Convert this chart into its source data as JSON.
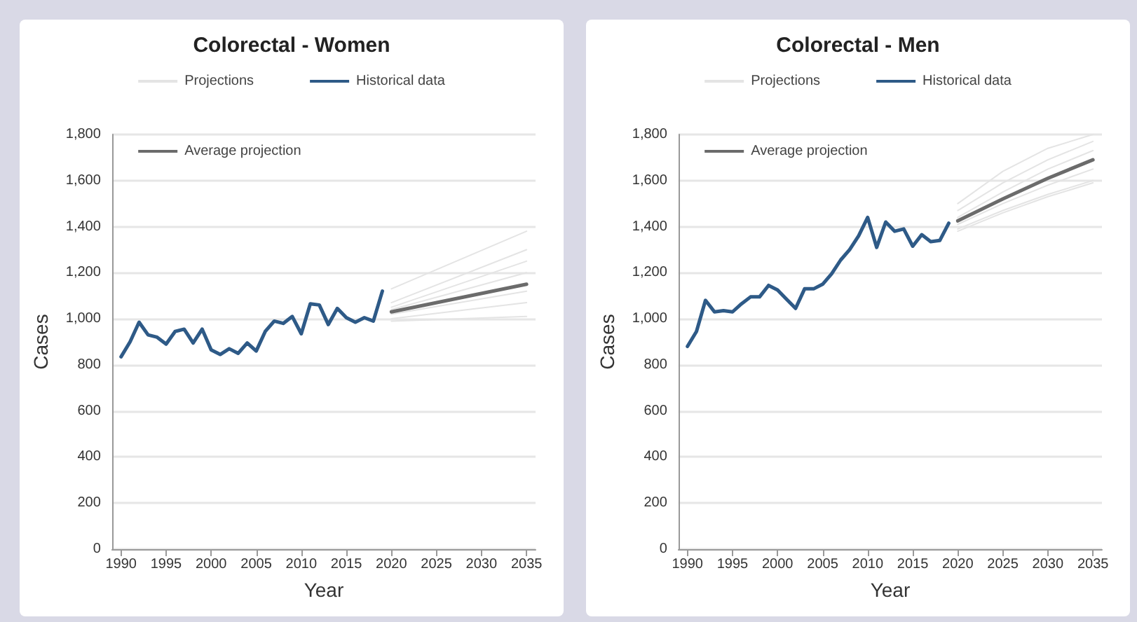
{
  "chart_data": [
    {
      "type": "line",
      "title": "Colorectal - Women",
      "xlabel": "Year",
      "ylabel": "Cases",
      "xlim": [
        1989,
        2036
      ],
      "xticks": [
        1990,
        1995,
        2000,
        2005,
        2010,
        2015,
        2020,
        2025,
        2030,
        2035
      ],
      "ylim": [
        0,
        1800
      ],
      "yticks": [
        0,
        200,
        400,
        600,
        800,
        {
          "value": 1000,
          "label": "1,000"
        },
        {
          "value": 1200,
          "label": "1,200"
        },
        {
          "value": 1400,
          "label": "1,400"
        },
        {
          "value": 1600,
          "label": "1,600"
        },
        {
          "value": 1800,
          "label": "1,800"
        }
      ],
      "grid": "y",
      "legend": "top",
      "marker": "none",
      "line_style": "solid",
      "series": [
        {
          "name": "Projections",
          "color": "#e4e4e4",
          "x": [
            2020,
            2035
          ],
          "values": [
            1130,
            1380
          ]
        },
        {
          "color": "#e4e4e4",
          "x": [
            2020,
            2035
          ],
          "values": [
            1070,
            1300
          ]
        },
        {
          "color": "#e4e4e4",
          "x": [
            2020,
            2035
          ],
          "values": [
            1050,
            1250
          ]
        },
        {
          "color": "#e4e4e4",
          "x": [
            2020,
            2035
          ],
          "values": [
            1040,
            1200
          ]
        },
        {
          "color": "#e4e4e4",
          "x": [
            2020,
            2035
          ],
          "values": [
            1020,
            1120
          ]
        },
        {
          "color": "#e4e4e4",
          "x": [
            2020,
            2035
          ],
          "values": [
            1000,
            1070
          ]
        },
        {
          "color": "#e4e4e4",
          "x": [
            2020,
            2035
          ],
          "values": [
            990,
            1010
          ]
        },
        {
          "name": "Historical data",
          "color": "#2e5a87",
          "x": [
            1990,
            1991,
            1992,
            1993,
            1994,
            1995,
            1996,
            1997,
            1998,
            1999,
            2000,
            2001,
            2002,
            2003,
            2004,
            2005,
            2006,
            2007,
            2008,
            2009,
            2010,
            2011,
            2012,
            2013,
            2014,
            2015,
            2016,
            2017,
            2018,
            2019
          ],
          "values": [
            835,
            900,
            985,
            930,
            920,
            890,
            945,
            955,
            895,
            955,
            865,
            845,
            870,
            850,
            895,
            860,
            945,
            990,
            980,
            1010,
            935,
            1065,
            1060,
            975,
            1045,
            1005,
            985,
            1005,
            990,
            1120
          ]
        },
        {
          "name": "Average projection",
          "color": "#6b6b6b",
          "x": [
            2020,
            2035
          ],
          "values": [
            1030,
            1150
          ]
        }
      ]
    },
    {
      "type": "line",
      "title": "Colorectal - Men",
      "xlabel": "Year",
      "ylabel": "Cases",
      "xlim": [
        1989,
        2036
      ],
      "xticks": [
        1990,
        1995,
        2000,
        2005,
        2010,
        2015,
        2020,
        2025,
        2030,
        2035
      ],
      "ylim": [
        0,
        1800
      ],
      "yticks": [
        0,
        200,
        400,
        600,
        800,
        {
          "value": 1000,
          "label": "1,000"
        },
        {
          "value": 1200,
          "label": "1,200"
        },
        {
          "value": 1400,
          "label": "1,400"
        },
        {
          "value": 1600,
          "label": "1,600"
        },
        {
          "value": 1800,
          "label": "1,800"
        }
      ],
      "grid": "y",
      "legend": "top",
      "marker": "none",
      "line_style": "solid",
      "series": [
        {
          "name": "Projections",
          "color": "#e4e4e4",
          "x": [
            2020,
            2025,
            2030,
            2035
          ],
          "values": [
            1500,
            1640,
            1740,
            1800
          ]
        },
        {
          "color": "#e4e4e4",
          "x": [
            2020,
            2025,
            2030,
            2035
          ],
          "values": [
            1470,
            1590,
            1690,
            1770
          ]
        },
        {
          "color": "#e4e4e4",
          "x": [
            2020,
            2025,
            2030,
            2035
          ],
          "values": [
            1440,
            1550,
            1650,
            1730
          ]
        },
        {
          "color": "#e4e4e4",
          "x": [
            2020,
            2025,
            2030,
            2035
          ],
          "values": [
            1410,
            1500,
            1580,
            1650
          ]
        },
        {
          "color": "#e4e4e4",
          "x": [
            2020,
            2025,
            2030,
            2035
          ],
          "values": [
            1390,
            1470,
            1540,
            1600
          ]
        },
        {
          "color": "#e4e4e4",
          "x": [
            2020,
            2025,
            2030,
            2035
          ],
          "values": [
            1380,
            1460,
            1530,
            1590
          ]
        },
        {
          "name": "Historical data",
          "color": "#2e5a87",
          "x": [
            1990,
            1991,
            1992,
            1993,
            1994,
            1995,
            1996,
            1997,
            1998,
            1999,
            2000,
            2001,
            2002,
            2003,
            2004,
            2005,
            2006,
            2007,
            2008,
            2009,
            2010,
            2011,
            2012,
            2013,
            2014,
            2015,
            2016,
            2017,
            2018,
            2019
          ],
          "values": [
            880,
            945,
            1080,
            1030,
            1035,
            1030,
            1065,
            1095,
            1095,
            1145,
            1125,
            1085,
            1045,
            1130,
            1130,
            1150,
            1195,
            1255,
            1300,
            1360,
            1440,
            1310,
            1420,
            1380,
            1390,
            1315,
            1365,
            1335,
            1340,
            1415
          ]
        },
        {
          "name": "Average projection",
          "color": "#6b6b6b",
          "x": [
            2020,
            2025,
            2030,
            2035
          ],
          "values": [
            1425,
            1520,
            1610,
            1690
          ]
        }
      ]
    }
  ]
}
